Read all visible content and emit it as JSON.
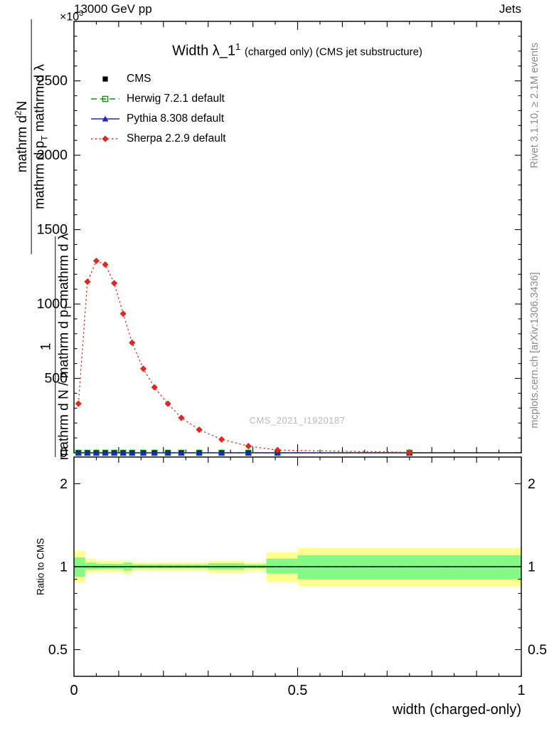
{
  "header": {
    "left": "13000 GeV pp",
    "right": "Jets"
  },
  "title": {
    "main": "Width λ_1",
    "sup": "1",
    "suffix": "(charged only) (CMS jet substructure)"
  },
  "legend": [
    {
      "label": "CMS",
      "color": "#000000",
      "marker": "square",
      "line": "none"
    },
    {
      "label": "Herwig 7.2.1 default",
      "color": "#00a000",
      "marker": "square-open",
      "line": "dashed"
    },
    {
      "label": "Pythia 8.308 default",
      "color": "#2222cc",
      "marker": "triangle",
      "line": "solid"
    },
    {
      "label": "Sherpa 2.2.9 default",
      "color": "#e8251d",
      "marker": "diamond",
      "line": "dotted"
    }
  ],
  "watermark": "CMS_2021_I1920187",
  "side_labels": {
    "top_right": "Rivet 3.1.10, ≥ 2.1M events",
    "bottom_right": "mcplots.cern.ch [arXiv:1306.3436]"
  },
  "y_axis_label": {
    "exponent_base": "×10",
    "exponent_sup": "3",
    "block1": {
      "num_pre": "mathrm d",
      "num_sup": "2",
      "num_post": "N",
      "den_pre": "mathrm d p",
      "den_sub": "T",
      "den_post": " mathrm d λ"
    },
    "block2": {
      "num": "1",
      "den_pre": "mathrm d N / mathrm d p",
      "den_sub": "T",
      "den_post": " mathrm d λ"
    }
  },
  "chart_data": [
    {
      "type": "line",
      "title": "Width λ_1^1 (charged only) (CMS jet substructure)",
      "xlabel": "width (charged-only)",
      "ylabel": "mathrm d²N / mathrm d p_T mathrm d λ",
      "y_unit_exponent": 3,
      "xlim": [
        0,
        1
      ],
      "ylim": [
        0,
        2900
      ],
      "grid": false,
      "legend_position": "top-left",
      "x_major_ticks": [
        0,
        0.5,
        1
      ],
      "x_tick_labels": [
        "0",
        "0.5",
        "1"
      ],
      "x_minor_step": 0.05,
      "y_major_ticks": [
        0,
        500,
        1000,
        1500,
        2000,
        2500
      ],
      "y_major_step": 500,
      "y_minor_step": 100,
      "series": [
        {
          "name": "CMS",
          "color": "#000000",
          "marker": "square",
          "line": "none",
          "x": [
            0.01,
            0.03,
            0.05,
            0.07,
            0.09,
            0.11,
            0.13,
            0.155,
            0.18,
            0.21,
            0.24,
            0.28,
            0.33,
            0.39,
            0.455,
            0.75
          ],
          "y": [
            0,
            0,
            0,
            0,
            0,
            0,
            0,
            0,
            0,
            0,
            0,
            0,
            0,
            0,
            0,
            0
          ]
        },
        {
          "name": "Herwig 7.2.1 default",
          "color": "#00a000",
          "marker": "square-open",
          "line": "dashed",
          "x": [
            0.01,
            0.03,
            0.05,
            0.07,
            0.09,
            0.11,
            0.13,
            0.155,
            0.18,
            0.21,
            0.24,
            0.28,
            0.33,
            0.39,
            0.455,
            0.75
          ],
          "y": [
            0,
            0,
            0,
            0,
            0,
            0,
            0,
            0,
            0,
            0,
            0,
            0,
            0,
            0,
            0,
            0
          ]
        },
        {
          "name": "Pythia 8.308 default",
          "color": "#2222cc",
          "marker": "triangle",
          "line": "solid",
          "x": [
            0.01,
            0.03,
            0.05,
            0.07,
            0.09,
            0.11,
            0.13,
            0.155,
            0.18,
            0.21,
            0.24,
            0.28,
            0.33,
            0.39,
            0.455,
            0.75
          ],
          "y": [
            0,
            0,
            0,
            0,
            0,
            0,
            0,
            0,
            0,
            0,
            0,
            0,
            0,
            0,
            0,
            0
          ]
        },
        {
          "name": "Sherpa 2.2.9 default",
          "color": "#e8251d",
          "marker": "diamond",
          "line": "dotted",
          "x": [
            0.01,
            0.03,
            0.05,
            0.07,
            0.09,
            0.11,
            0.13,
            0.155,
            0.18,
            0.21,
            0.24,
            0.28,
            0.33,
            0.39,
            0.455,
            0.75
          ],
          "y": [
            330,
            1150,
            1290,
            1265,
            1140,
            935,
            740,
            565,
            440,
            330,
            235,
            155,
            90,
            45,
            18,
            3
          ]
        }
      ]
    },
    {
      "type": "ratio",
      "ylabel": "Ratio to CMS",
      "yscale": "log",
      "ylim": [
        0.4,
        2.5
      ],
      "y_ticks": [
        0.5,
        1,
        2
      ],
      "y_tick_labels": [
        "0.5",
        "1",
        "2"
      ],
      "y_minor_ticks": [
        0.6,
        0.7,
        0.8,
        0.9
      ],
      "reference_line": 1,
      "band_colors": {
        "yellow": "#ffff90",
        "green": "#85f985"
      },
      "bands": {
        "yellow": [
          [
            0.0,
            0.025,
            0.88,
            1.14
          ],
          [
            0.025,
            0.05,
            0.95,
            1.07
          ],
          [
            0.05,
            0.11,
            0.955,
            1.05
          ],
          [
            0.11,
            0.13,
            0.94,
            1.055
          ],
          [
            0.13,
            0.175,
            0.965,
            1.04
          ],
          [
            0.175,
            0.3,
            0.97,
            1.035
          ],
          [
            0.3,
            0.38,
            0.95,
            1.05
          ],
          [
            0.38,
            0.43,
            0.962,
            1.04
          ],
          [
            0.43,
            0.5,
            0.88,
            1.13
          ],
          [
            0.5,
            1.0,
            0.85,
            1.17
          ]
        ],
        "green": [
          [
            0.0,
            0.025,
            0.92,
            1.08
          ],
          [
            0.025,
            0.05,
            0.975,
            1.035
          ],
          [
            0.05,
            0.11,
            0.98,
            1.025
          ],
          [
            0.11,
            0.13,
            0.97,
            1.035
          ],
          [
            0.13,
            0.175,
            0.985,
            1.02
          ],
          [
            0.175,
            0.3,
            0.985,
            1.02
          ],
          [
            0.3,
            0.38,
            0.975,
            1.03
          ],
          [
            0.38,
            0.43,
            0.985,
            1.02
          ],
          [
            0.43,
            0.5,
            0.945,
            1.07
          ],
          [
            0.5,
            1.0,
            0.9,
            1.1
          ]
        ]
      },
      "mc_lines": [
        {
          "name": "Pythia 8.308 default",
          "color": "#2222cc",
          "line": "solid",
          "y": 1.0
        },
        {
          "name": "Herwig 7.2.1 default",
          "color": "#00a000",
          "line": "dashed",
          "y": 1.0
        }
      ]
    }
  ]
}
